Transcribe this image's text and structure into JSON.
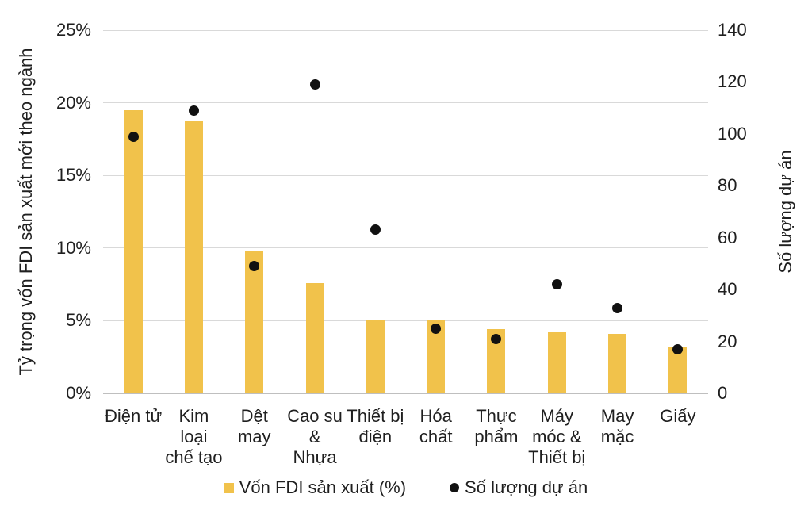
{
  "chart_data": {
    "type": "bar-scatter-combo",
    "title": "",
    "categories": [
      "Điện tử",
      "Kim loại chế tạo",
      "Dệt may",
      "Cao su & Nhựa",
      "Thiết bị điện",
      "Hóa chất",
      "Thực phẩm",
      "Máy móc & Thiết bị",
      "May mặc",
      "Giấy"
    ],
    "category_label_lines": [
      [
        "Điện tử"
      ],
      [
        "Kim",
        "loại",
        "chế tạo"
      ],
      [
        "Dệt",
        "may"
      ],
      [
        "Cao su",
        "&",
        "Nhựa"
      ],
      [
        "Thiết bị",
        "điện"
      ],
      [
        "Hóa",
        "chất"
      ],
      [
        "Thực",
        "phẩm"
      ],
      [
        "Máy",
        "móc &",
        "Thiết bị"
      ],
      [
        "May",
        "mặc"
      ],
      [
        "Giấy"
      ]
    ],
    "series": [
      {
        "name": "Vốn FDI sản xuất (%)",
        "type": "bar",
        "axis": "left",
        "color": "#F1C24B",
        "values": [
          19.5,
          18.7,
          9.8,
          7.6,
          5.1,
          5.1,
          4.4,
          4.2,
          4.1,
          3.2
        ]
      },
      {
        "name": "Số lượng dự án",
        "type": "scatter",
        "axis": "right",
        "color": "#111111",
        "values": [
          99,
          109,
          49,
          119,
          63,
          25,
          21,
          42,
          33,
          17
        ]
      }
    ],
    "left_axis": {
      "title": "Tỷ trọng vốn FDI sản xuất mới theo ngành",
      "min": 0,
      "max": 25,
      "ticks": [
        "0%",
        "5%",
        "10%",
        "15%",
        "20%",
        "25%"
      ]
    },
    "right_axis": {
      "title": "Số lượng dự án",
      "min": 0,
      "max": 140,
      "ticks": [
        "0",
        "20",
        "40",
        "60",
        "80",
        "100",
        "120",
        "140"
      ]
    },
    "grid": true,
    "legend_position": "bottom"
  },
  "legend": {
    "bar_label": "Vốn FDI sản xuất (%)",
    "dot_label": "Số lượng dự án"
  },
  "colors": {
    "bar": "#F1C24B",
    "dot": "#111111",
    "gridline": "#D9D9D9",
    "baseline": "#BFBFBF",
    "text": "#1F1F1F"
  }
}
